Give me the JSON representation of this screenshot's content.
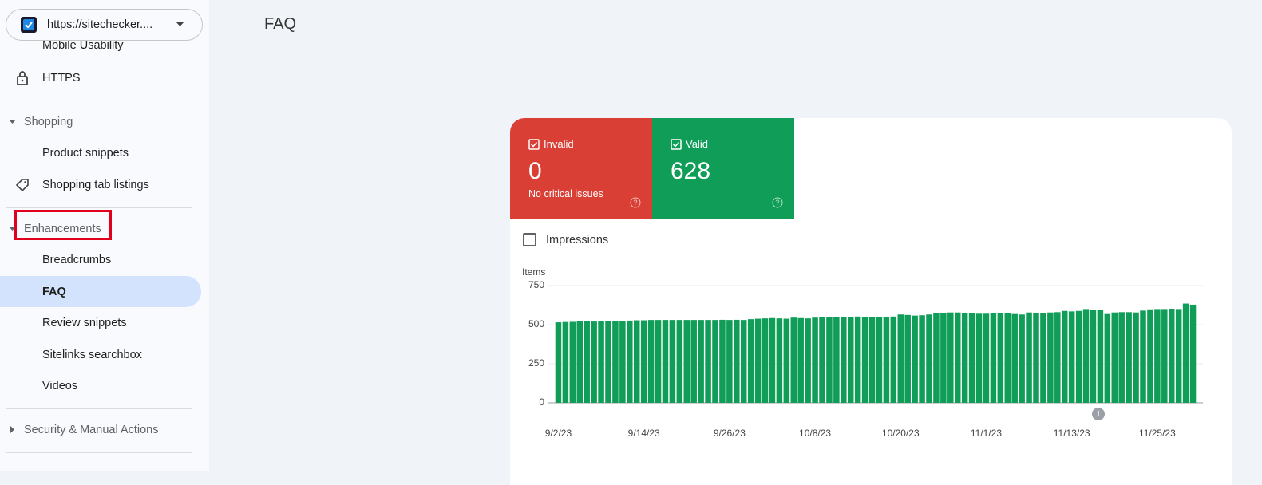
{
  "property": "https://sitechecker....",
  "header": {
    "title": "FAQ"
  },
  "nav": {
    "top_items": [
      "Mobile Usability",
      "HTTPS"
    ],
    "sections": [
      {
        "title": "Shopping",
        "items": [
          "Product snippets",
          "Shopping tab listings"
        ]
      },
      {
        "title": "Enhancements",
        "items": [
          "Breadcrumbs",
          "FAQ",
          "Review snippets",
          "Sitelinks searchbox",
          "Videos"
        ]
      },
      {
        "title": "Security & Manual Actions"
      }
    ]
  },
  "summary": [
    {
      "label": "Invalid",
      "value": 0,
      "note": "No critical issues"
    },
    {
      "label": "Valid",
      "value": 628
    }
  ],
  "impressions_toggle": "Impressions",
  "chart_data": {
    "type": "bar",
    "y_label": "Items",
    "color": "#0f9d58",
    "categories": [
      "9/2/23",
      null,
      null,
      null,
      null,
      null,
      null,
      null,
      null,
      null,
      null,
      null,
      "9/14/23",
      null,
      null,
      null,
      null,
      null,
      null,
      null,
      null,
      null,
      null,
      null,
      "9/26/23",
      null,
      null,
      null,
      null,
      null,
      null,
      null,
      null,
      null,
      null,
      null,
      "10/8/23",
      null,
      null,
      null,
      null,
      null,
      null,
      null,
      null,
      null,
      null,
      null,
      "10/20/23",
      null,
      null,
      null,
      null,
      null,
      null,
      null,
      null,
      null,
      null,
      null,
      "11/1/23",
      null,
      null,
      null,
      null,
      null,
      null,
      null,
      null,
      null,
      null,
      null,
      "11/13/23",
      null,
      null,
      null,
      null,
      null,
      null,
      null,
      null,
      null,
      null,
      null,
      "11/25/23",
      null,
      null,
      null,
      null,
      null
    ],
    "values": [
      515,
      517,
      518,
      525,
      522,
      520,
      522,
      524,
      522,
      525,
      526,
      528,
      528,
      530,
      530,
      530,
      530,
      530,
      530,
      530,
      530,
      530,
      530,
      531,
      530,
      531,
      530,
      535,
      538,
      540,
      542,
      540,
      538,
      545,
      542,
      540,
      545,
      548,
      548,
      548,
      550,
      548,
      552,
      550,
      548,
      550,
      548,
      552,
      565,
      562,
      558,
      560,
      565,
      572,
      575,
      578,
      578,
      575,
      572,
      570,
      570,
      572,
      575,
      572,
      568,
      565,
      578,
      575,
      575,
      578,
      580,
      588,
      585,
      588,
      600,
      595,
      595,
      568,
      578,
      580,
      580,
      578,
      590,
      598,
      600,
      600,
      602,
      600,
      635,
      628
    ],
    "ylim": [
      0,
      750
    ],
    "yticks": [
      0,
      250,
      500,
      750
    ],
    "grid": true,
    "annotations": [
      {
        "label": "1"
      }
    ]
  }
}
